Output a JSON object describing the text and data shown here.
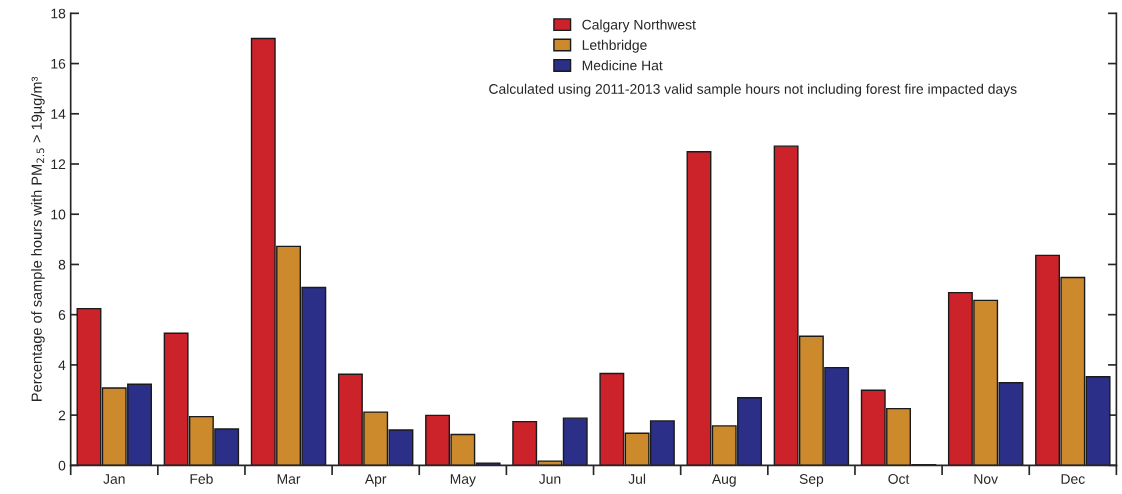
{
  "chart_data": {
    "type": "bar",
    "ylabel": "Percentage of sample hours with PM$_{2.5}$ > 19µg/m³",
    "categories": [
      "Jan",
      "Feb",
      "Mar",
      "Apr",
      "May",
      "Jun",
      "Jul",
      "Aug",
      "Sep",
      "Oct",
      "Nov",
      "Dec"
    ],
    "series": [
      {
        "name": "Calgary Northwest",
        "color": "#cc2229",
        "values": [
          6.24,
          5.26,
          17.0,
          3.63,
          1.99,
          1.74,
          3.66,
          12.49,
          12.71,
          2.99,
          6.88,
          8.36
        ]
      },
      {
        "name": "Lethbridge",
        "color": "#cc8a2c",
        "values": [
          3.08,
          1.94,
          8.72,
          2.12,
          1.23,
          0.17,
          1.28,
          1.57,
          5.14,
          2.26,
          6.57,
          7.48
        ]
      },
      {
        "name": "Medicine Hat",
        "color": "#2b2f88",
        "values": [
          3.23,
          1.45,
          7.08,
          1.41,
          0.09,
          1.88,
          1.77,
          2.69,
          3.89,
          0.03,
          3.29,
          3.53
        ]
      }
    ],
    "ylim": [
      0,
      18
    ],
    "yticks": [
      0,
      2,
      4,
      6,
      8,
      10,
      12,
      14,
      16,
      18
    ],
    "annotations": [
      "Calculated using 2011-2013 valid sample hours not including forest fire impacted days"
    ],
    "legend": "top",
    "grid": false
  }
}
